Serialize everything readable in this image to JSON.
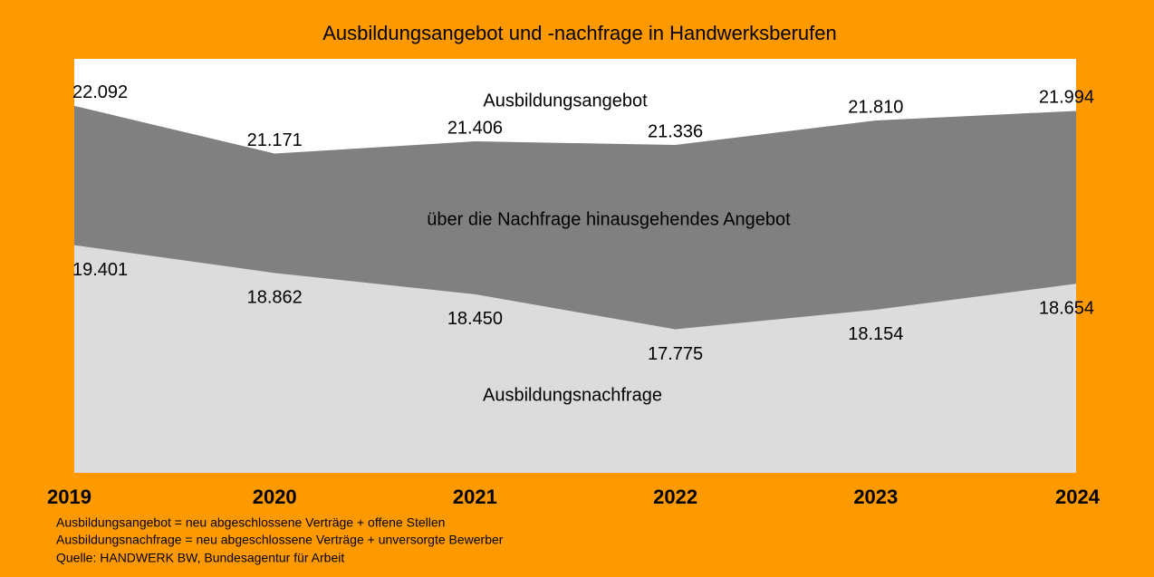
{
  "chart_data": {
    "type": "area",
    "title": "Ausbildungsangebot und -nachfrage in Handwerksberufen",
    "categories": [
      "2019",
      "2020",
      "2021",
      "2022",
      "2023",
      "2024"
    ],
    "series": [
      {
        "name": "Ausbildungsangebot",
        "color": "#808080",
        "values": [
          22092,
          21171,
          21406,
          21336,
          21810,
          21994
        ],
        "value_labels": [
          "22.092",
          "21.171",
          "21.406",
          "21.336",
          "21.810",
          "21.994"
        ]
      },
      {
        "name": "Ausbildungsnachfrage",
        "color": "#dcdcdc",
        "values": [
          19401,
          18862,
          18450,
          17775,
          18154,
          18654
        ],
        "value_labels": [
          "19.401",
          "18.862",
          "18.450",
          "17.775",
          "18.154",
          "18.654"
        ]
      }
    ],
    "annotation": "über die Nachfrage hinausgehendes Angebot",
    "notes": [
      "Ausbildungsangebot = neu abgeschlossene Verträge + offene Stellen",
      "Ausbildungsnachfrage = neu abgeschlossene Verträge + unversorgte Bewerber",
      "Quelle: HANDWERK BW, Bundesagentur für Arbeit"
    ],
    "ylim": [
      15000,
      23000
    ],
    "background": "#ff9900"
  }
}
